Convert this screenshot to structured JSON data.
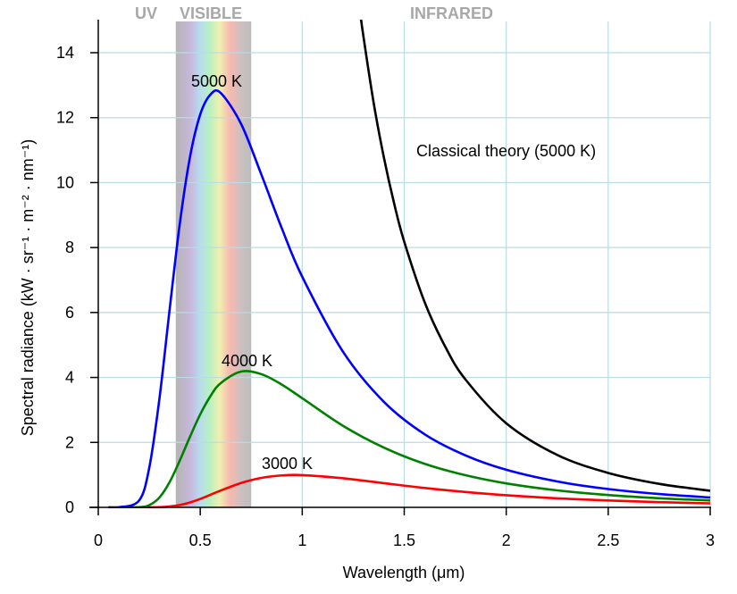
{
  "chart_data": {
    "type": "line",
    "xlabel": "Wavelength (μm)",
    "ylabel": "Spectral radiance (kW · sr⁻¹ · m⁻² · nm⁻¹)",
    "xlim": [
      0,
      3
    ],
    "ylim": [
      0,
      15
    ],
    "grid": true,
    "grid_color": "#b9dbe6",
    "xticks": [
      "0",
      "0.5",
      "1",
      "1.5",
      "2",
      "2.5",
      "3"
    ],
    "xtick_values": [
      0,
      0.5,
      1,
      1.5,
      2,
      2.5,
      3
    ],
    "yticks": [
      "0",
      "2",
      "4",
      "6",
      "8",
      "10",
      "12",
      "14"
    ],
    "ytick_values": [
      0,
      2,
      4,
      6,
      8,
      10,
      12,
      14
    ],
    "regions": [
      {
        "label": "UV"
      },
      {
        "label": "VISIBLE",
        "range": [
          0.38,
          0.75
        ]
      },
      {
        "label": "INFRARED"
      }
    ],
    "x": [
      0.05,
      0.1,
      0.2,
      0.25,
      0.3,
      0.35,
      0.4,
      0.45,
      0.5,
      0.55,
      0.6,
      0.7,
      0.8,
      0.9,
      1.0,
      1.2,
      1.4,
      1.6,
      1.8,
      2.0,
      2.25,
      2.5,
      2.75,
      3.0
    ],
    "series": [
      {
        "label": "5000 K",
        "color": "#0000ff",
        "values": [
          0,
          0,
          0.21,
          1.22,
          3.35,
          6.1,
          8.75,
          10.8,
          12.1,
          12.71,
          12.76,
          11.81,
          10.24,
          8.59,
          7.1,
          4.79,
          3.25,
          2.25,
          1.6,
          1.157,
          0.797,
          0.564,
          0.41,
          0.304
        ]
      },
      {
        "label": "4000 K",
        "color": "#008000",
        "values": [
          0,
          0,
          0.006,
          0.069,
          0.304,
          0.78,
          1.447,
          2.178,
          2.865,
          3.425,
          3.823,
          4.18,
          4.1,
          3.78,
          3.36,
          2.51,
          1.84,
          1.34,
          0.989,
          0.738,
          0.523,
          0.379,
          0.28,
          0.212
        ]
      },
      {
        "label": "3000 K",
        "color": "#ff0000",
        "values": [
          0,
          0,
          0,
          0.001,
          0.006,
          0.026,
          0.072,
          0.152,
          0.26,
          0.386,
          0.517,
          0.75,
          0.907,
          0.983,
          0.993,
          0.896,
          0.745,
          0.597,
          0.473,
          0.372,
          0.277,
          0.211,
          0.16,
          0.124
        ]
      }
    ],
    "classical": {
      "label": "Classical theory (5000 K)",
      "color": "#000000",
      "x": [
        1.25,
        1.28,
        1.3,
        1.35,
        1.4,
        1.45,
        1.5,
        1.6,
        1.7,
        1.8,
        2.0,
        2.25,
        2.5,
        2.75,
        3.0
      ],
      "values": [
        16.96,
        15.42,
        14.5,
        12.46,
        10.78,
        9.37,
        8.18,
        6.32,
        4.96,
        3.94,
        2.59,
        1.615,
        1.06,
        0.724,
        0.511
      ]
    }
  }
}
